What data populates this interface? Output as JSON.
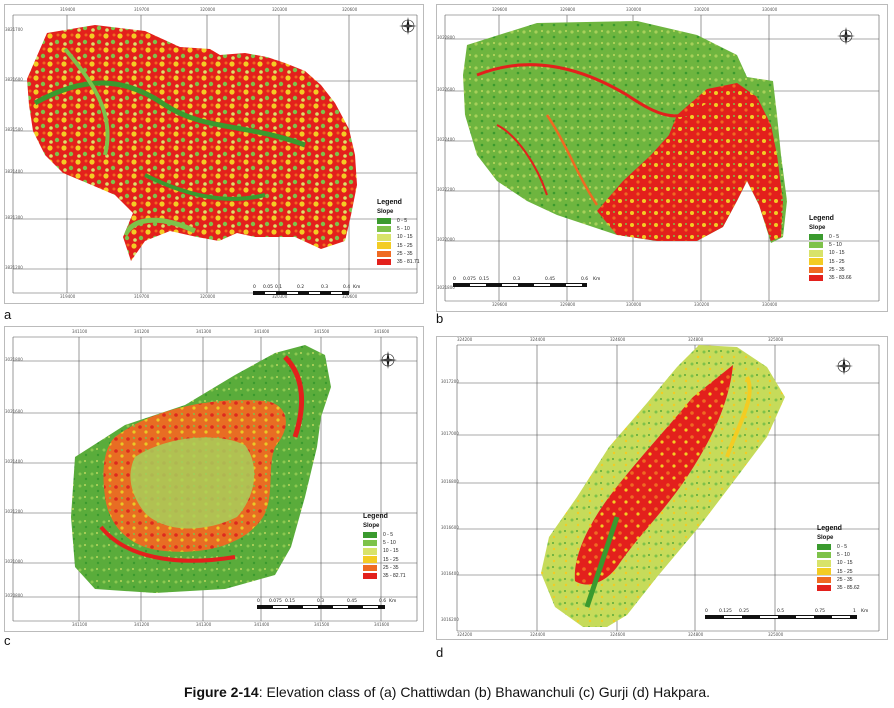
{
  "caption": {
    "label": "Figure 2-14",
    "text": ": Elevation class of (a) Chattiwdan (b) Bhawanchuli (c) Gurji (d) Hakpara."
  },
  "legend_title": "Legend",
  "legend_sub": "Slope",
  "north_letters": {
    "n": "N",
    "s": "S",
    "e": "E",
    "w": "W"
  },
  "colors": {
    "c1": "#3a9a2e",
    "c2": "#7ec24a",
    "c3": "#d8e36a",
    "c4": "#f3cc23",
    "c5": "#ef6a22",
    "c6": "#e3201c"
  },
  "panels": [
    {
      "id": "a",
      "label": "a",
      "classes": [
        "0 - 5",
        "5 - 10",
        "10 - 15",
        "15 - 25",
        "25 - 35",
        "35 - 81.71"
      ],
      "scale": [
        "0",
        "0.05",
        "0.1",
        "0.2",
        "0.3",
        "0.4"
      ],
      "scale_unit": "Km",
      "xticks": [
        "319400",
        "319700",
        "320000",
        "320300",
        "320600"
      ],
      "xticks_bottom": [
        "319400",
        "319700",
        "320000",
        "320300",
        "320600"
      ],
      "yticks": [
        "3821700",
        "3821600",
        "3821500",
        "3821400",
        "3821300",
        "3821200"
      ]
    },
    {
      "id": "b",
      "label": "b",
      "classes": [
        "0 - 5",
        "5 - 10",
        "10 - 15",
        "15 - 25",
        "25 - 35",
        "35 - 83.66"
      ],
      "scale": [
        "0",
        "0.075",
        "0.15",
        "0.3",
        "0.45",
        "0.6"
      ],
      "scale_unit": "Km",
      "xticks": [
        "329600",
        "329800",
        "330000",
        "330200",
        "330400"
      ],
      "xticks_bottom": [
        "329600",
        "329800",
        "330000",
        "330200",
        "330400"
      ],
      "yticks": [
        "3022800",
        "3022600",
        "3022400",
        "3022200",
        "3022000",
        "3021800"
      ]
    },
    {
      "id": "c",
      "label": "c",
      "classes": [
        "0 - 5",
        "5 - 10",
        "10 - 15",
        "15 - 25",
        "25 - 35",
        "35 - 82.71"
      ],
      "scale": [
        "0",
        "0.075",
        "0.15",
        "0.3",
        "0.45",
        "0.6"
      ],
      "scale_unit": "Km",
      "xticks": [
        "341100",
        "341200",
        "341300",
        "341400",
        "341500",
        "341600"
      ],
      "xticks_bottom": [
        "341100",
        "341200",
        "341300",
        "341400",
        "341500",
        "341600"
      ],
      "yticks": [
        "3021800",
        "3021600",
        "3021400",
        "3021200",
        "3021000",
        "3020800"
      ]
    },
    {
      "id": "d",
      "label": "d",
      "classes": [
        "0 - 5",
        "5 - 10",
        "10 - 15",
        "15 - 25",
        "25 - 35",
        "35 - 85.62"
      ],
      "scale": [
        "0",
        "0.125",
        "0.25",
        "0.5",
        "0.75",
        "1"
      ],
      "scale_unit": "Km",
      "xticks": [
        "324200",
        "324400",
        "324600",
        "324800",
        "325000"
      ],
      "xticks_bottom": [
        "324200",
        "324400",
        "324600",
        "324800",
        "325000"
      ],
      "yticks": [
        "3017200",
        "3017000",
        "3016800",
        "3016600",
        "3016400",
        "3016200"
      ]
    }
  ]
}
